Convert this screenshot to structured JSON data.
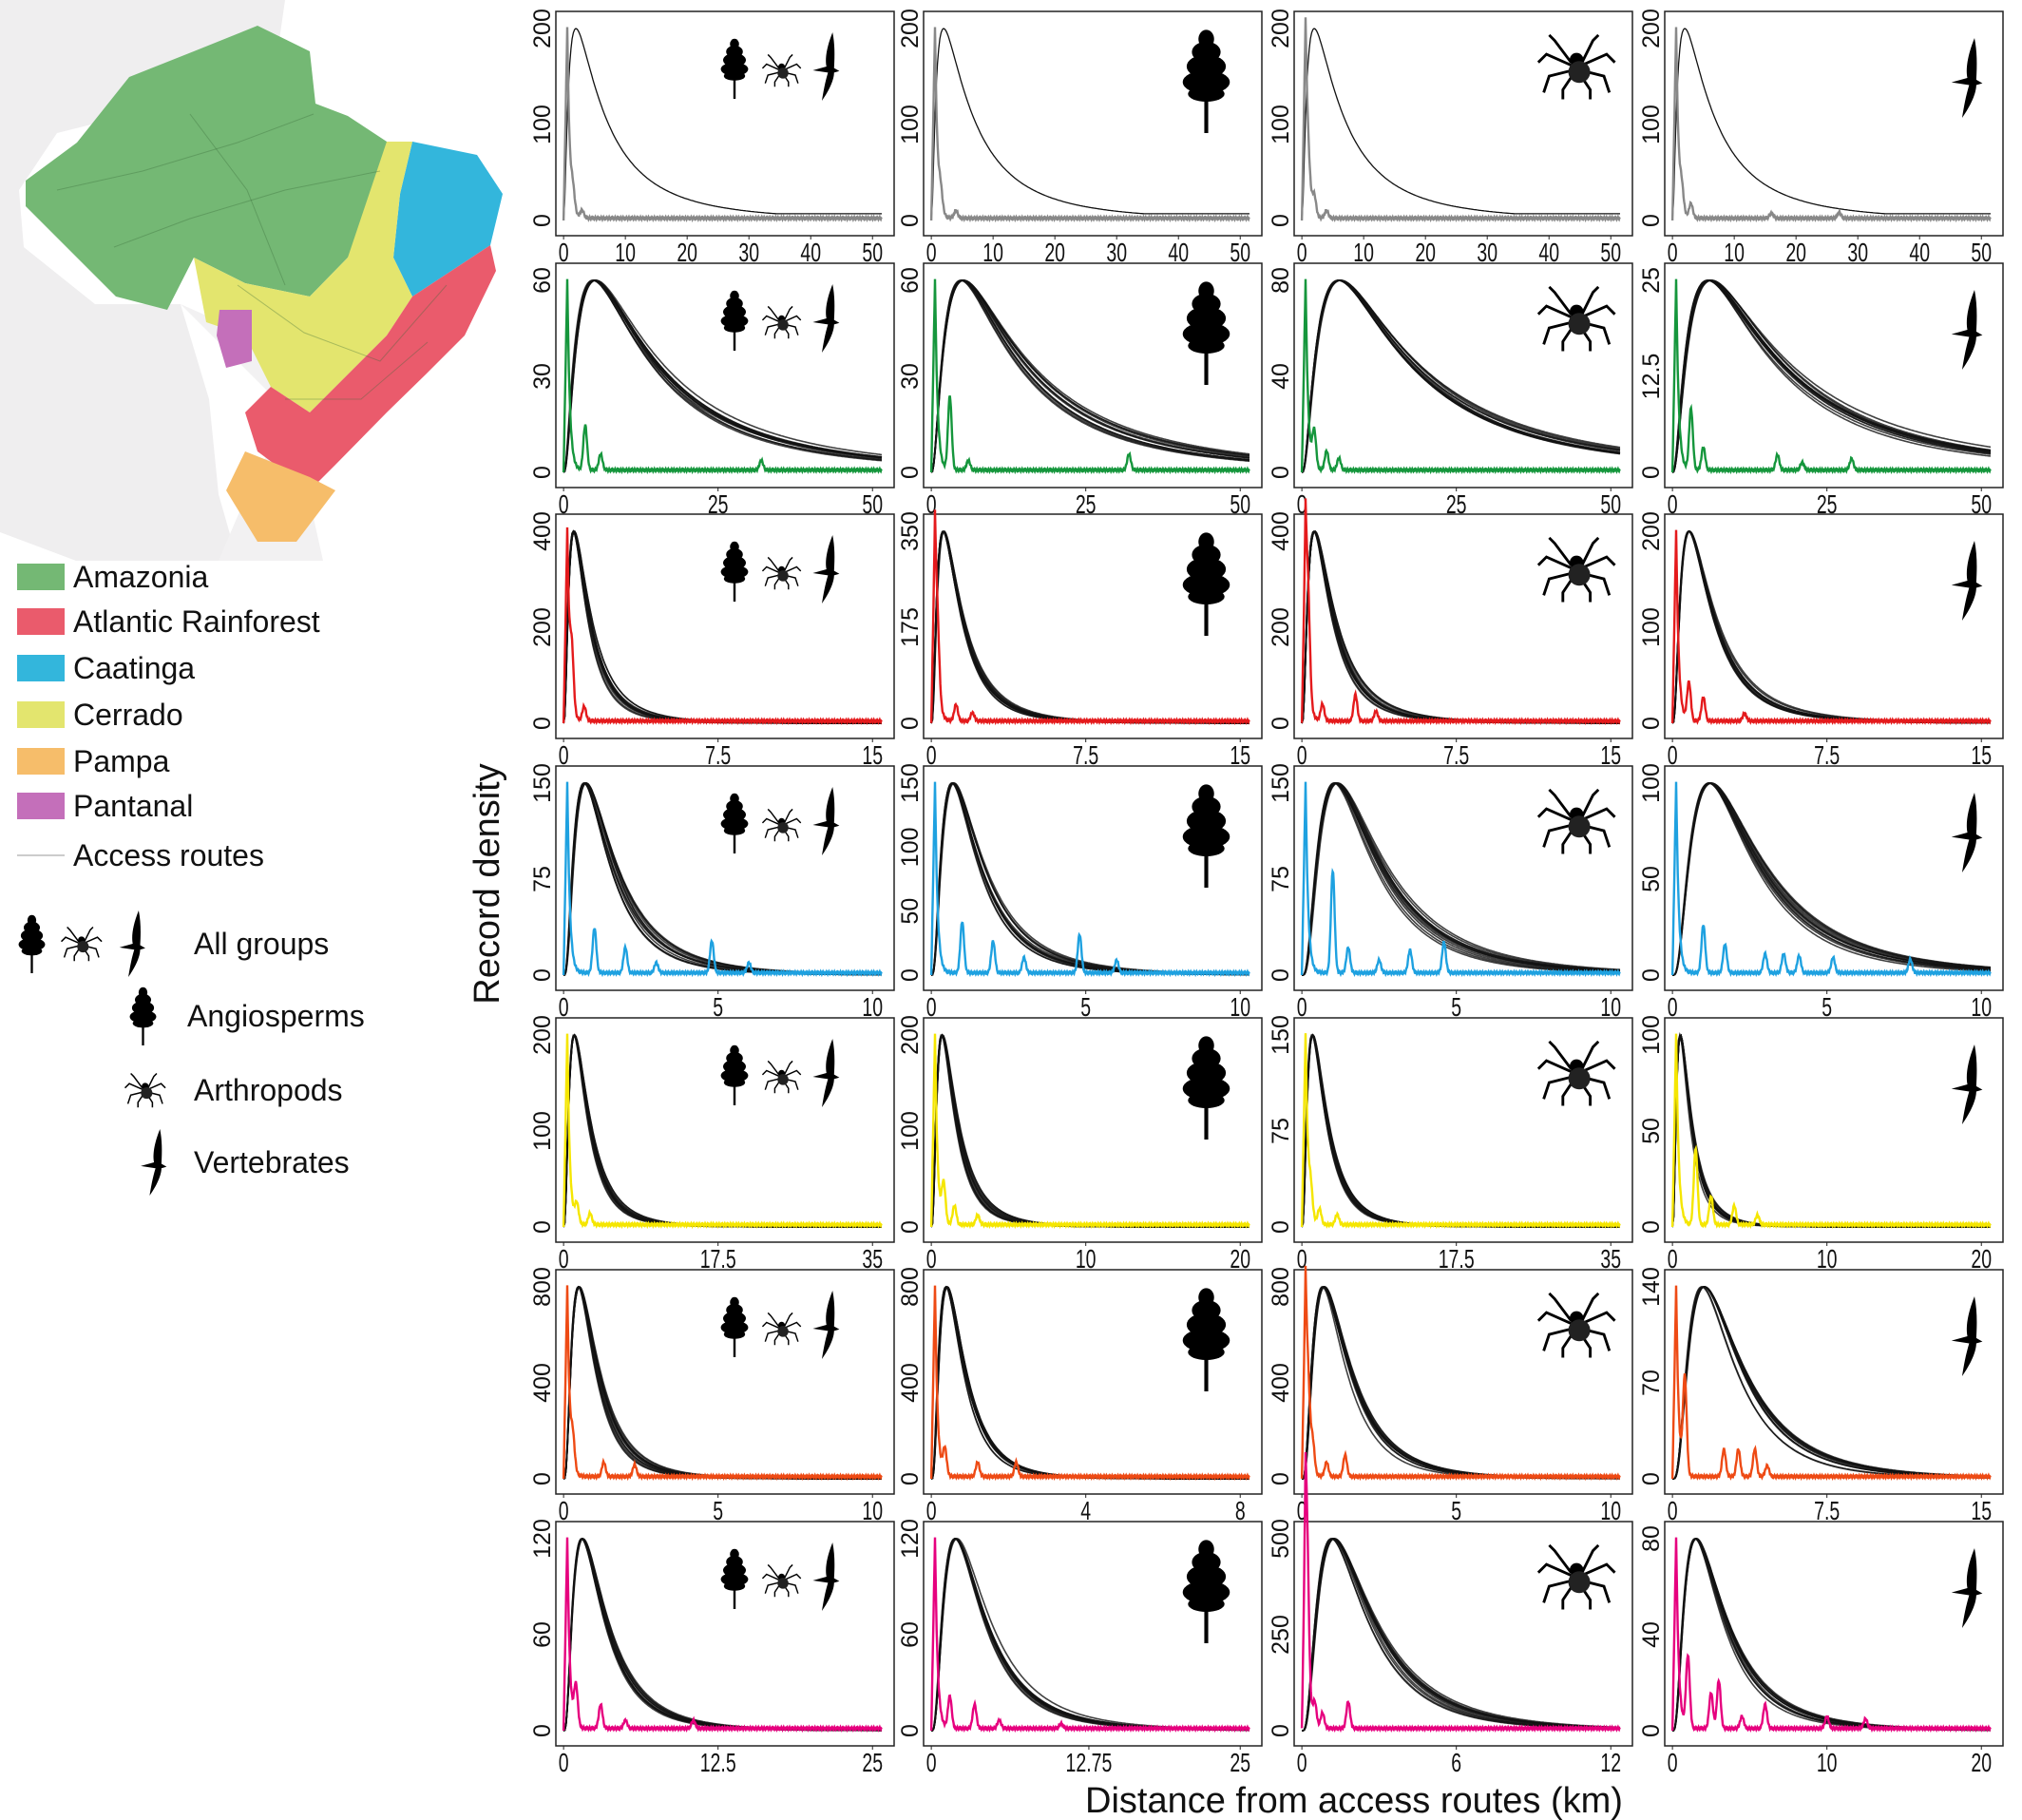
{
  "legend": {
    "biomes": [
      {
        "label": "Amazonia",
        "color": "#74b874"
      },
      {
        "label": "Atlantic Rainforest",
        "color": "#ea5b6c"
      },
      {
        "label": "Caatinga",
        "color": "#33b6dc"
      },
      {
        "label": "Cerrado",
        "color": "#e3e56e"
      },
      {
        "label": "Pampa",
        "color": "#f6bd6a"
      },
      {
        "label": "Pantanal",
        "color": "#c46fba"
      }
    ],
    "routes": {
      "label": "Access routes",
      "color": "#cccccc"
    },
    "groups": [
      {
        "label": "All groups",
        "icons": [
          "tree-icon",
          "spider-icon",
          "bird-icon"
        ]
      },
      {
        "label": "Angiosperms",
        "icons": [
          "tree-icon"
        ]
      },
      {
        "label": "Arthropods",
        "icons": [
          "spider-icon"
        ]
      },
      {
        "label": "Vertebrates",
        "icons": [
          "bird-icon"
        ]
      }
    ]
  },
  "chart_data": {
    "type": "line",
    "xlabel": "Distance from access routes (km)",
    "ylabel": "Record density",
    "grid": false,
    "columns": [
      "all-groups",
      "angiosperms",
      "arthropods",
      "vertebrates"
    ],
    "expected_color": "#111111",
    "rows": [
      {
        "color": "#888888",
        "panels": [
          {
            "yticks": [
              0,
              100,
              200
            ],
            "xticks": [
              0,
              10,
              20,
              30,
              40,
              50
            ],
            "expected_peak_x": 2,
            "observed_peaks": [
              [
                1.5,
                20
              ],
              [
                3,
                8
              ]
            ]
          },
          {
            "yticks": [
              0,
              100,
              200
            ],
            "xticks": [
              0,
              10,
              20,
              30,
              40,
              50
            ],
            "expected_peak_x": 2,
            "observed_peaks": [
              [
                1.5,
                20
              ],
              [
                4,
                8
              ]
            ]
          },
          {
            "yticks": [
              0,
              100,
              200
            ],
            "xticks": [
              0,
              10,
              20,
              30,
              40,
              50
            ],
            "expected_peak_x": 2,
            "observed_peaks": [
              [
                1,
                25
              ],
              [
                2,
                20
              ],
              [
                4,
                8
              ]
            ]
          },
          {
            "yticks": [
              0,
              100,
              200
            ],
            "xticks": [
              0,
              10,
              20,
              30,
              40,
              50
            ],
            "expected_peak_x": 2,
            "observed_peaks": [
              [
                1.5,
                22
              ],
              [
                3,
                15
              ],
              [
                16,
                5
              ],
              [
                27,
                6
              ]
            ]
          }
        ]
      },
      {
        "color": "#15963c",
        "panels": [
          {
            "yticks": [
              0,
              30,
              60
            ],
            "xticks": [
              0,
              25,
              50
            ],
            "expected_peak_x": 5,
            "observed_peaks": [
              [
                3.5,
                14
              ],
              [
                6,
                5
              ],
              [
                32,
                3
              ]
            ]
          },
          {
            "yticks": [
              0,
              30,
              60
            ],
            "xticks": [
              0,
              25,
              50
            ],
            "expected_peak_x": 5,
            "observed_peaks": [
              [
                3,
                23
              ],
              [
                6,
                3
              ],
              [
                32,
                5
              ]
            ]
          },
          {
            "yticks": [
              0,
              40,
              80
            ],
            "xticks": [
              0,
              25,
              50
            ],
            "expected_peak_x": 6,
            "observed_peaks": [
              [
                2,
                15
              ],
              [
                4,
                8
              ],
              [
                6,
                5
              ]
            ]
          },
          {
            "yticks": [
              0,
              12.5,
              25
            ],
            "xticks": [
              0,
              25,
              50
            ],
            "expected_peak_x": 6,
            "observed_peaks": [
              [
                3,
                8
              ],
              [
                5,
                3
              ],
              [
                17,
                2
              ],
              [
                21,
                1
              ],
              [
                29,
                1.5
              ]
            ]
          }
        ]
      },
      {
        "color": "#e41a1c",
        "panels": [
          {
            "yticks": [
              0,
              200,
              400
            ],
            "xticks": [
              0,
              7.5,
              15
            ],
            "expected_peak_x": 0.5,
            "observed_peaks": [
              [
                0.4,
                110
              ],
              [
                1,
                30
              ]
            ]
          },
          {
            "yticks": [
              0,
              175,
              350
            ],
            "xticks": [
              0,
              7.5,
              15
            ],
            "expected_peak_x": 0.6,
            "observed_peaks": [
              [
                0.3,
                90
              ],
              [
                1.2,
                30
              ],
              [
                2,
                15
              ]
            ]
          },
          {
            "yticks": [
              0,
              200,
              400
            ],
            "xticks": [
              0,
              7.5,
              15
            ],
            "expected_peak_x": 0.6,
            "observed_peaks": [
              [
                0.3,
                160
              ],
              [
                1,
                35
              ],
              [
                2.6,
                55
              ],
              [
                3.6,
                20
              ]
            ]
          },
          {
            "yticks": [
              0,
              100,
              200
            ],
            "xticks": [
              0,
              7.5,
              15
            ],
            "expected_peak_x": 0.8,
            "observed_peaks": [
              [
                0.8,
                40
              ],
              [
                1.5,
                25
              ],
              [
                3.5,
                8
              ]
            ]
          }
        ]
      },
      {
        "color": "#1ea1e0",
        "panels": [
          {
            "yticks": [
              0,
              75,
              150
            ],
            "xticks": [
              0,
              5,
              10
            ],
            "expected_peak_x": 0.7,
            "observed_peaks": [
              [
                1,
                35
              ],
              [
                2,
                20
              ],
              [
                3,
                8
              ],
              [
                4.8,
                25
              ],
              [
                6,
                8
              ]
            ]
          },
          {
            "yticks": [
              0,
              50,
              100,
              150
            ],
            "xticks": [
              0,
              5,
              10
            ],
            "expected_peak_x": 0.7,
            "observed_peaks": [
              [
                1,
                40
              ],
              [
                2,
                25
              ],
              [
                3,
                12
              ],
              [
                4.8,
                30
              ],
              [
                6,
                10
              ]
            ]
          },
          {
            "yticks": [
              0,
              75,
              150
            ],
            "xticks": [
              0,
              5,
              10
            ],
            "expected_peak_x": 1.1,
            "observed_peaks": [
              [
                1,
                80
              ],
              [
                1.5,
                20
              ],
              [
                2.5,
                10
              ],
              [
                3.5,
                18
              ],
              [
                4.6,
                24
              ]
            ]
          },
          {
            "yticks": [
              0,
              50,
              100
            ],
            "xticks": [
              0,
              5,
              10
            ],
            "expected_peak_x": 1.2,
            "observed_peaks": [
              [
                1,
                25
              ],
              [
                1.7,
                15
              ],
              [
                3,
                10
              ],
              [
                3.6,
                10
              ],
              [
                4.1,
                9
              ],
              [
                5.2,
                8
              ],
              [
                7.7,
                7
              ]
            ]
          }
        ]
      },
      {
        "color": "#f5e600",
        "panels": [
          {
            "yticks": [
              0,
              100,
              200
            ],
            "xticks": [
              0,
              17.5,
              35
            ],
            "expected_peak_x": 1.2,
            "observed_peaks": [
              [
                1.5,
                20
              ],
              [
                3,
                12
              ]
            ]
          },
          {
            "yticks": [
              0,
              100,
              200
            ],
            "xticks": [
              0,
              10,
              20
            ],
            "expected_peak_x": 0.7,
            "observed_peaks": [
              [
                0.8,
                40
              ],
              [
                1.5,
                20
              ],
              [
                3,
                10
              ]
            ]
          },
          {
            "yticks": [
              0,
              75,
              150
            ],
            "xticks": [
              0,
              17.5,
              35
            ],
            "expected_peak_x": 1.2,
            "observed_peaks": [
              [
                1,
                20
              ],
              [
                2,
                12
              ],
              [
                4,
                8
              ]
            ]
          },
          {
            "yticks": [
              0,
              50,
              100
            ],
            "xticks": [
              0,
              10,
              20
            ],
            "expected_peak_x": 0.5,
            "observed_peaks": [
              [
                1.5,
                40
              ],
              [
                2.5,
                15
              ],
              [
                4,
                10
              ],
              [
                5.5,
                5
              ]
            ]
          }
        ]
      },
      {
        "color": "#ee4a14",
        "panels": [
          {
            "yticks": [
              0,
              400,
              800
            ],
            "xticks": [
              0,
              5,
              10
            ],
            "expected_peak_x": 0.5,
            "observed_peaks": [
              [
                0.3,
                120
              ],
              [
                1.3,
                60
              ],
              [
                2.3,
                50
              ]
            ]
          },
          {
            "yticks": [
              0,
              400,
              800
            ],
            "xticks": [
              0,
              4,
              8
            ],
            "expected_peak_x": 0.4,
            "observed_peaks": [
              [
                0.35,
                110
              ],
              [
                1.2,
                60
              ],
              [
                2.2,
                60
              ]
            ]
          },
          {
            "yticks": [
              0,
              400,
              800
            ],
            "xticks": [
              0,
              5,
              10
            ],
            "expected_peak_x": 0.7,
            "observed_peaks": [
              [
                0.2,
                200
              ],
              [
                0.35,
                120
              ],
              [
                0.8,
                60
              ],
              [
                1.4,
                90
              ]
            ]
          },
          {
            "yticks": [
              0,
              70,
              140
            ],
            "xticks": [
              0,
              7.5,
              15
            ],
            "expected_peak_x": 1.5,
            "observed_peaks": [
              [
                0.6,
                70
              ],
              [
                2.5,
                20
              ],
              [
                3.2,
                20
              ],
              [
                4,
                20
              ],
              [
                4.6,
                8
              ]
            ]
          }
        ]
      },
      {
        "color": "#e6007e",
        "panels": [
          {
            "yticks": [
              0,
              60,
              120
            ],
            "xticks": [
              0,
              12.5,
              25
            ],
            "expected_peak_x": 1.5,
            "observed_peaks": [
              [
                1,
                25
              ],
              [
                3,
                15
              ],
              [
                5,
                5
              ],
              [
                10.5,
                5
              ]
            ]
          },
          {
            "yticks": [
              0,
              60,
              120
            ],
            "xticks": [
              0,
              12.75,
              25
            ],
            "expected_peak_x": 2,
            "observed_peaks": [
              [
                1.5,
                20
              ],
              [
                3.5,
                15
              ],
              [
                5.5,
                5
              ],
              [
                10.5,
                3
              ]
            ]
          },
          {
            "yticks": [
              0,
              250,
              500
            ],
            "xticks": [
              0,
              6,
              12
            ],
            "expected_peak_x": 1.2,
            "observed_peaks": [
              [
                0.2,
                300
              ],
              [
                0.5,
                60
              ],
              [
                0.8,
                40
              ],
              [
                1.8,
                70
              ]
            ]
          },
          {
            "yticks": [
              0,
              40,
              80
            ],
            "xticks": [
              0,
              10,
              20
            ],
            "expected_peak_x": 1.5,
            "observed_peaks": [
              [
                1,
                30
              ],
              [
                2.5,
                15
              ],
              [
                3,
                20
              ],
              [
                4.5,
                5
              ],
              [
                6,
                10
              ],
              [
                10,
                5
              ],
              [
                12.5,
                4
              ]
            ]
          }
        ]
      }
    ]
  }
}
